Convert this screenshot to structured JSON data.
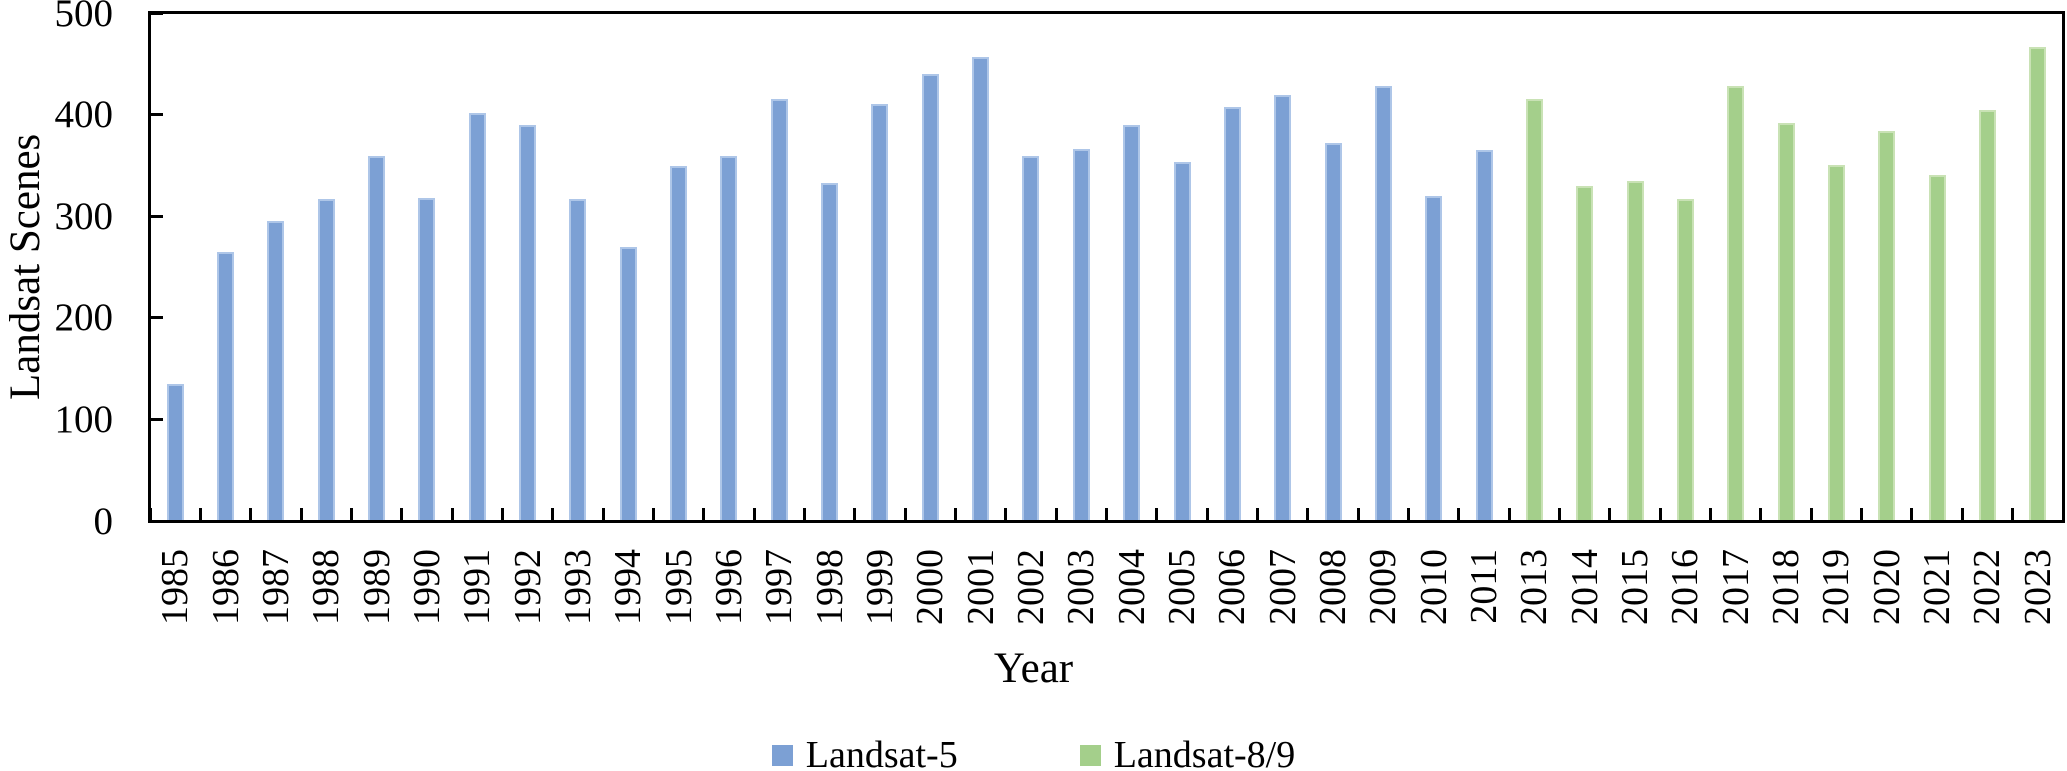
{
  "chart_data": {
    "type": "bar",
    "title": "",
    "xlabel": "Year",
    "ylabel": "Landsat Scenes",
    "ylim": [
      0,
      500
    ],
    "yticks": [
      0,
      100,
      200,
      300,
      400,
      500
    ],
    "grid": false,
    "legend_position": "bottom",
    "categories": [
      "1985",
      "1986",
      "1987",
      "1988",
      "1989",
      "1990",
      "1991",
      "1992",
      "1993",
      "1994",
      "1995",
      "1996",
      "1997",
      "1998",
      "1999",
      "2000",
      "2001",
      "2002",
      "2003",
      "2004",
      "2005",
      "2006",
      "2007",
      "2008",
      "2009",
      "2010",
      "2011",
      "2013",
      "2014",
      "2015",
      "2016",
      "2017",
      "2018",
      "2019",
      "2020",
      "2021",
      "2022",
      "2023"
    ],
    "series": [
      {
        "name": "Landsat-5",
        "color": "#7CA0D4",
        "edge_color": "#AEC6E8",
        "years": [
          "1985",
          "1986",
          "1987",
          "1988",
          "1989",
          "1990",
          "1991",
          "1992",
          "1993",
          "1994",
          "1995",
          "1996",
          "1997",
          "1998",
          "1999",
          "2000",
          "2001",
          "2002",
          "2003",
          "2004",
          "2005",
          "2006",
          "2007",
          "2008",
          "2009",
          "2010",
          "2011"
        ],
        "values": [
          135,
          265,
          295,
          317,
          359,
          318,
          402,
          390,
          317,
          270,
          349,
          359,
          415,
          333,
          410,
          440,
          457,
          359,
          366,
          390,
          353,
          407,
          419,
          372,
          428,
          320,
          365
        ]
      },
      {
        "name": "Landsat-8/9",
        "color": "#A4CF8B",
        "edge_color": "#C9E2B5",
        "years": [
          "2013",
          "2014",
          "2015",
          "2016",
          "2017",
          "2018",
          "2019",
          "2020",
          "2021",
          "2022",
          "2023"
        ],
        "values": [
          415,
          330,
          335,
          317,
          428,
          392,
          350,
          384,
          341,
          405,
          467
        ]
      }
    ],
    "axis_color": "#000000"
  }
}
